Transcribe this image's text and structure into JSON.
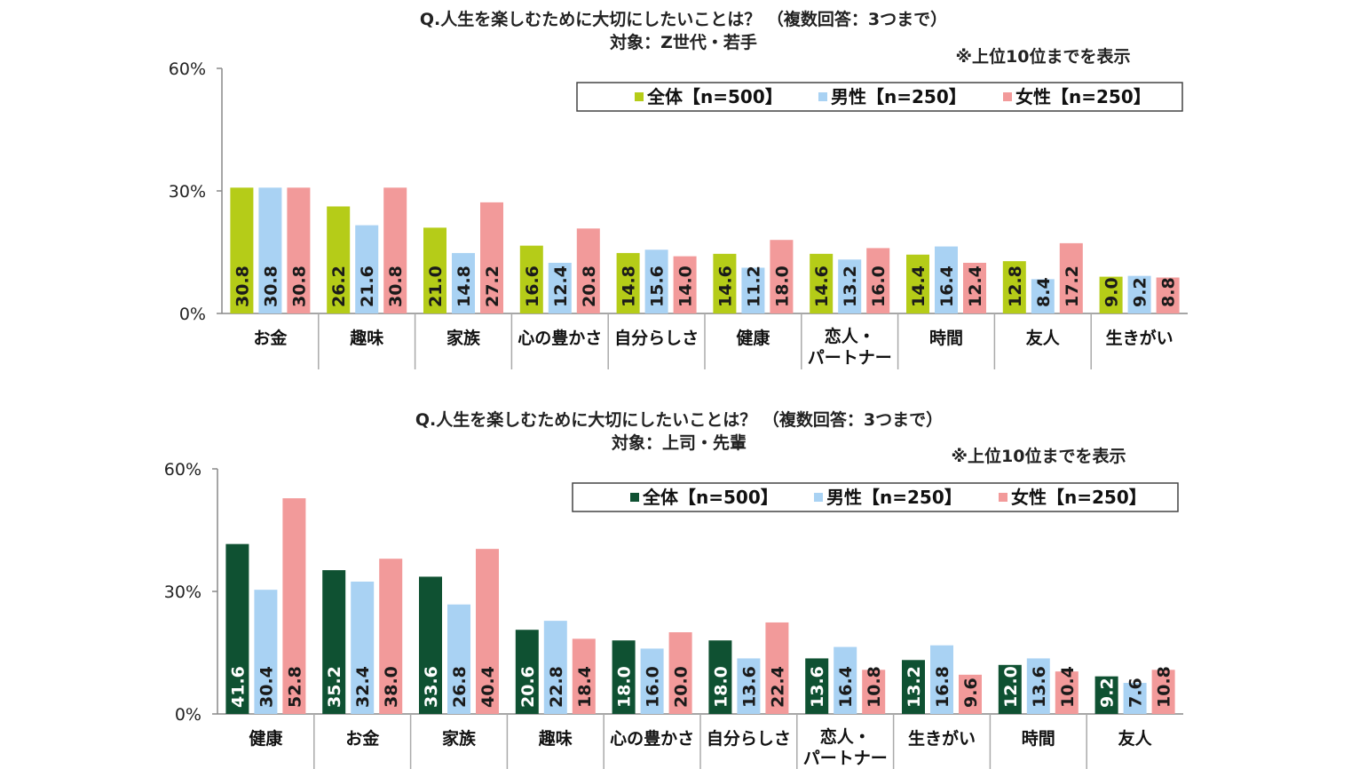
{
  "chart_data": [
    {
      "type": "bar",
      "title": "Q.人生を楽しむために大切にしたいことは？ （複数回答：3つまで）",
      "subtitle": "対象：Z世代・若手",
      "note": "※上位10位までを表示",
      "yticks": [
        "60%",
        "30%",
        "0%"
      ],
      "ylim": [
        0,
        60
      ],
      "categories": [
        [
          "お金"
        ],
        [
          "趣味"
        ],
        [
          "家族"
        ],
        [
          "心の豊かさ"
        ],
        [
          "自分らしさ"
        ],
        [
          "健康"
        ],
        [
          "恋人・",
          "パートナー"
        ],
        [
          "時間"
        ],
        [
          "友人"
        ],
        [
          "生きがい"
        ]
      ],
      "series": [
        {
          "name": "全体【n=500】",
          "color": "#b5cc18",
          "values": [
            30.8,
            26.2,
            21.0,
            16.6,
            14.8,
            14.6,
            14.6,
            14.4,
            12.8,
            9.0
          ]
        },
        {
          "name": "男性【n=250】",
          "color": "#a9d2f3",
          "values": [
            30.8,
            21.6,
            14.8,
            12.4,
            15.6,
            11.2,
            13.2,
            16.4,
            8.4,
            9.2
          ]
        },
        {
          "name": "女性【n=250】",
          "color": "#f29a9a",
          "values": [
            30.8,
            30.8,
            27.2,
            20.8,
            14.0,
            18.0,
            16.0,
            12.4,
            17.2,
            8.8
          ]
        }
      ],
      "grid": false,
      "legend": "top-right"
    },
    {
      "type": "bar",
      "title": "Q.人生を楽しむために大切にしたいことは？ （複数回答：3つまで）",
      "subtitle": "対象：上司・先輩",
      "note": "※上位10位までを表示",
      "yticks": [
        "60%",
        "30%",
        "0%"
      ],
      "ylim": [
        0,
        60
      ],
      "categories": [
        [
          "健康"
        ],
        [
          "お金"
        ],
        [
          "家族"
        ],
        [
          "趣味"
        ],
        [
          "心の豊かさ"
        ],
        [
          "自分らしさ"
        ],
        [
          "恋人・",
          "パートナー"
        ],
        [
          "生きがい"
        ],
        [
          "時間"
        ],
        [
          "友人"
        ]
      ],
      "series": [
        {
          "name": "全体【n=500】",
          "color": "#0f5132",
          "values": [
            41.6,
            35.2,
            33.6,
            20.6,
            18.0,
            18.0,
            13.6,
            13.2,
            12.0,
            9.2
          ]
        },
        {
          "name": "男性【n=250】",
          "color": "#a9d2f3",
          "values": [
            30.4,
            32.4,
            26.8,
            22.8,
            16.0,
            13.6,
            16.4,
            16.8,
            13.6,
            7.6
          ]
        },
        {
          "name": "女性【n=250】",
          "color": "#f29a9a",
          "values": [
            52.8,
            38.0,
            40.4,
            18.4,
            20.0,
            22.4,
            10.8,
            9.6,
            10.4,
            10.8
          ]
        }
      ],
      "grid": false,
      "legend": "top-right"
    }
  ]
}
